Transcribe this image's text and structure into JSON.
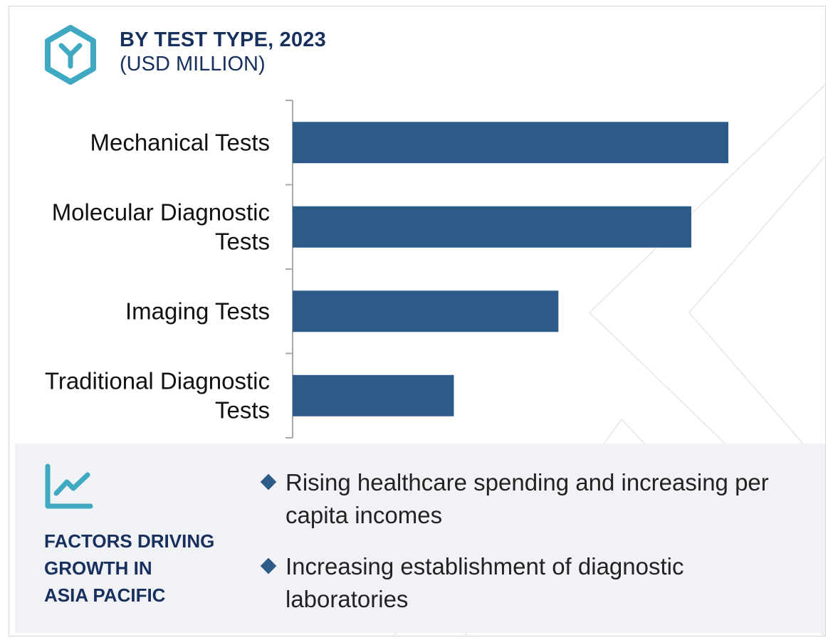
{
  "header": {
    "title": "BY TEST TYPE, 2023",
    "subtitle": "(USD MILLION)",
    "logo_icon": "hexagon-y-logo-icon"
  },
  "chart_data": {
    "type": "bar",
    "orientation": "horizontal",
    "title": "BY TEST TYPE, 2023",
    "subtitle": "(USD MILLION)",
    "categories": [
      "Mechanical Tests",
      "Molecular Diagnostic Tests",
      "Imaging Tests",
      "Traditional Diagnostic Tests"
    ],
    "category_lines": [
      [
        "Mechanical Tests"
      ],
      [
        "Molecular Diagnostic",
        "Tests"
      ],
      [
        "Imaging Tests"
      ],
      [
        "Traditional Diagnostic",
        "Tests"
      ]
    ],
    "values": [
      100,
      91.5,
      61,
      37
    ],
    "value_note": "relative lengths only; no value axis shown",
    "xlim": [
      0,
      100
    ],
    "bar_color": "#2d5b89",
    "axis_color": "#a9a9a9",
    "grid": false,
    "legend": "none"
  },
  "factors": {
    "icon": "trend-line-chart-icon",
    "title_lines": [
      "FACTORS DRIVING",
      "GROWTH IN",
      "ASIA PACIFIC"
    ],
    "items": [
      {
        "lines": [
          "Rising healthcare spending and increasing per",
          "capita incomes"
        ]
      },
      {
        "lines": [
          "Increasing establishment of diagnostic",
          "laboratories"
        ]
      }
    ],
    "accent_color": "#17305e",
    "bullet_color": "#2d5b89",
    "icon_color": "#3fa9c1"
  }
}
